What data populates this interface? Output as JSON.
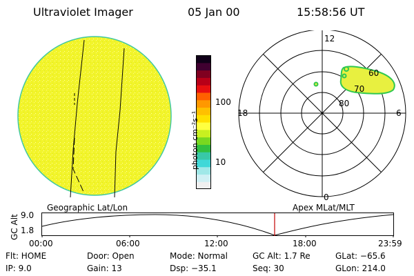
{
  "header": {
    "title": "Ultraviolet Imager",
    "date": "05 Jan 00",
    "time": "15:58:56 UT"
  },
  "colorbar": {
    "label": "photon cm⁻²s⁻¹",
    "ticks": [
      {
        "label": "100",
        "value": 100
      },
      {
        "label": "10",
        "value": 10
      }
    ],
    "colors": [
      "#f0f0f0",
      "#d0f0f4",
      "#a0e8e8",
      "#40d8d8",
      "#38c8a8",
      "#30c040",
      "#78d820",
      "#c8f020",
      "#ffff40",
      "#ffe000",
      "#ffc000",
      "#ff9800",
      "#ff6000",
      "#e81010",
      "#b80018",
      "#800020",
      "#400030",
      "#100018"
    ]
  },
  "polar_plot": {
    "top_label": "12",
    "left_label": "18",
    "right_label": "6",
    "bottom_label": "0",
    "ring_labels": [
      "60",
      "70",
      "80"
    ]
  },
  "image_colors": {
    "fill": "#f2f42a",
    "edge": "#40c8a0",
    "aurora": "#e8f040",
    "aurora_edge": "#30c850"
  },
  "strip": {
    "left_label": "Geographic Lat/Lon",
    "right_label": "Apex MLat/MLT",
    "y_axis_label": "GC Alt",
    "y_ticks": [
      "9.0",
      "1.8"
    ],
    "x_ticks": [
      "00:00",
      "06:00",
      "12:00",
      "18:00",
      "23:59"
    ],
    "marker_color": "#c00000"
  },
  "info": {
    "flt": "Flt: HOME",
    "ip": "IP:  9.0",
    "door": "Door: Open",
    "gain": "Gain: 13",
    "mode": "Mode: Normal",
    "dsp": "Dsp:  −35.1",
    "gc_alt": "GC Alt: 1.7 Re",
    "seq": "Seq: 30",
    "glat": "GLat: −65.6",
    "glon": "GLon: 214.0"
  }
}
